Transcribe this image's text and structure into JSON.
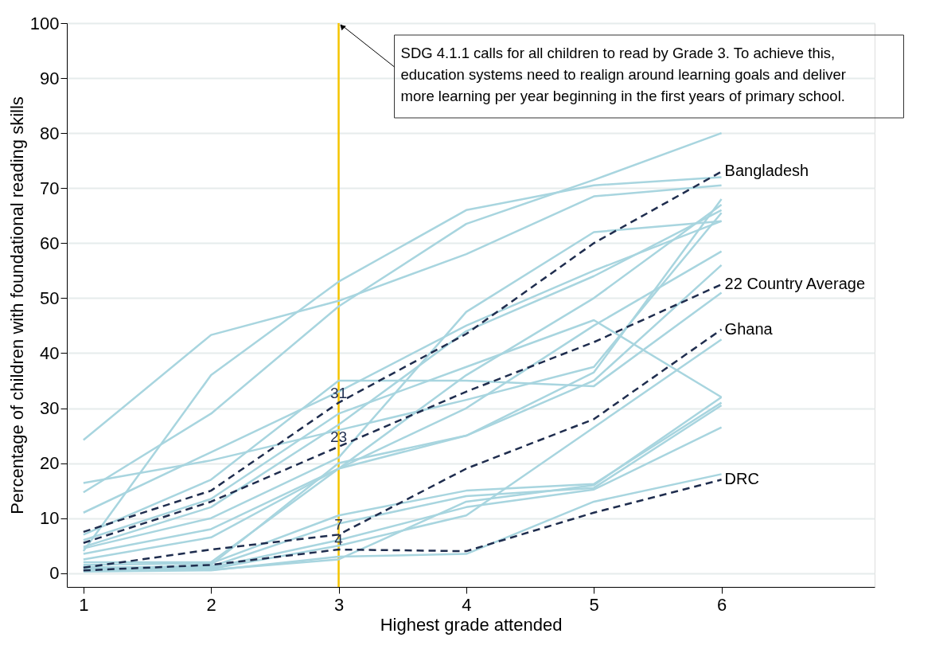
{
  "chart_data": {
    "type": "line",
    "xlabel": "Highest grade attended",
    "ylabel": "Percentage of children with foundational reading skills",
    "x": [
      1,
      2,
      3,
      4,
      5,
      6
    ],
    "xlim": [
      0.87,
      7.2
    ],
    "xticks": [
      1,
      2,
      3,
      4,
      5,
      6
    ],
    "ylim": [
      -2.5,
      100
    ],
    "yticks": [
      0,
      10,
      20,
      30,
      40,
      50,
      60,
      70,
      80,
      90,
      100
    ],
    "grid": "y",
    "ref_lines": [
      {
        "axis": "x",
        "value": 3,
        "color": "#f5c400"
      }
    ],
    "annotations": [
      {
        "text": "SDG 4.1.1 calls for all children to read by Grade 3.  To achieve this,\neducation systems need to realign around learning goals and deliver\nmore learning per year beginning in the first years of primary school.",
        "x": 3,
        "y": 100
      }
    ],
    "series": [
      {
        "color": "#a8d5df",
        "values": [
          24.2,
          43.3,
          49.5,
          58,
          68.5,
          70.5
        ]
      },
      {
        "color": "#a8d5df",
        "values": [
          4,
          36,
          53,
          66,
          70.5,
          72
        ]
      },
      {
        "color": "#a8d5df",
        "values": [
          14.7,
          29,
          48.5,
          63.5,
          71.5,
          80
        ]
      },
      {
        "color": "#a8d5df",
        "values": [
          16.4,
          20.5,
          26,
          31.5,
          37.5,
          65.5
        ]
      },
      {
        "color": "#a8d5df",
        "values": [
          11,
          22,
          33,
          45,
          55,
          64
        ]
      },
      {
        "color": "#a8d5df",
        "values": [
          7,
          17,
          35,
          35,
          34,
          51
        ]
      },
      {
        "color": "#a8d5df",
        "values": [
          6,
          13.5,
          29,
          37.5,
          46,
          32
        ]
      },
      {
        "color": "#a8d5df",
        "values": [
          4.8,
          12,
          27,
          44,
          54,
          66
        ]
      },
      {
        "color": "#a8d5df",
        "values": [
          4.5,
          10,
          21,
          47.5,
          62,
          64
        ]
      },
      {
        "color": "#a8d5df",
        "values": [
          3.5,
          8,
          19,
          36,
          50,
          67
        ]
      },
      {
        "color": "#a8d5df",
        "values": [
          2.5,
          6.5,
          19,
          25,
          36.5,
          68
        ]
      },
      {
        "color": "#a8d5df",
        "values": [
          2,
          2,
          19,
          30,
          45,
          58.5
        ]
      },
      {
        "color": "#a8d5df",
        "values": [
          1.5,
          1.8,
          10.5,
          15,
          16.2,
          31
        ]
      },
      {
        "color": "#a8d5df",
        "values": [
          1,
          1.2,
          9,
          14,
          15.5,
          30.5
        ]
      },
      {
        "color": "#a8d5df",
        "values": [
          0.8,
          1,
          6,
          12,
          15.2,
          26.5
        ]
      },
      {
        "color": "#a8d5df",
        "values": [
          0.5,
          0.8,
          5,
          10.5,
          26.5,
          42.5
        ]
      },
      {
        "color": "#a8d5df",
        "values": [
          0.3,
          0.5,
          3,
          3.5,
          13,
          18
        ]
      },
      {
        "color": "#a8d5df",
        "values": [
          1.2,
          0.6,
          2.5,
          13,
          16,
          32
        ]
      },
      {
        "color": "#a8d5df",
        "values": [
          0.6,
          1.5,
          20,
          25,
          35,
          56
        ]
      },
      {
        "name": "Bangladesh",
        "color": "#1f2d4e",
        "line_style": "dashed",
        "values": [
          7.5,
          15,
          31,
          43.5,
          60,
          73
        ],
        "value_labels": [
          null,
          null,
          "31",
          null,
          null,
          null
        ]
      },
      {
        "name": "22 Country Average",
        "color": "#1f2d4e",
        "line_style": "dashed",
        "values": [
          5.5,
          13,
          23,
          33,
          42,
          52.5
        ],
        "value_labels": [
          null,
          null,
          "23",
          null,
          null,
          null
        ]
      },
      {
        "name": "Ghana",
        "color": "#1f2d4e",
        "line_style": "dashed",
        "values": [
          1,
          4.3,
          7,
          19,
          28,
          44.3
        ],
        "value_labels": [
          null,
          null,
          "7",
          null,
          null,
          null
        ]
      },
      {
        "name": "DRC",
        "color": "#1f2d4e",
        "line_style": "dashed",
        "values": [
          0.5,
          1.5,
          4.3,
          4,
          11,
          17
        ],
        "value_labels": [
          null,
          null,
          "4",
          null,
          null,
          null
        ]
      }
    ]
  }
}
